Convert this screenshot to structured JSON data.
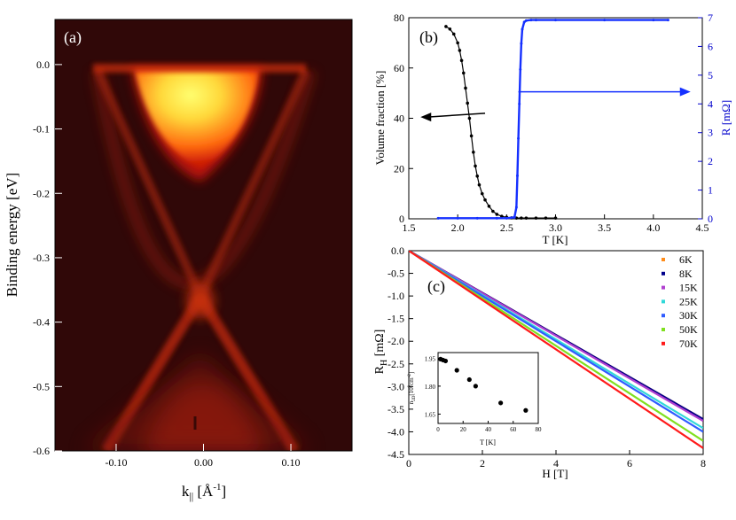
{
  "colors": {
    "arpes_bg": "#300808",
    "arpes_hot": "#ffff60",
    "black_series": "#000000",
    "blue_series": "#1530ff",
    "blue_axis": "#0000cc"
  },
  "chart_data": [
    {
      "id": "a",
      "type": "heatmap",
      "panel_label": "(a)",
      "xlabel_main": "k",
      "xlabel_sub": "||",
      "xlabel_unit": " [Å",
      "xlabel_sup": "-1",
      "xlabel_end": "]",
      "ylabel": "Binding energy [eV]",
      "xlim": [
        -0.17,
        0.17
      ],
      "ylim": [
        -0.6,
        0.07
      ],
      "xticks": [
        -0.1,
        0.0,
        0.1
      ],
      "xtick_labels": [
        "-0.10",
        "0.00",
        "0.10"
      ],
      "yticks": [
        0.0,
        -0.1,
        -0.2,
        -0.3,
        -0.4,
        -0.5,
        -0.6
      ],
      "ytick_labels": [
        "0.0",
        "-0.1",
        "-0.2",
        "-0.3",
        "-0.4",
        "-0.5",
        "-0.6"
      ],
      "features": {
        "dirac_point": {
          "k": -0.01,
          "E": -0.385
        },
        "conduction_band_bottom": {
          "k": -0.01,
          "E": -0.16
        },
        "fermi_k_range": [
          -0.095,
          0.065
        ]
      }
    },
    {
      "id": "b",
      "type": "line",
      "panel_label": "(b)",
      "xlabel": "T [K]",
      "ylabel_left": "Volume fraction [%]",
      "ylabel_right_prefix": "R [m",
      "ylabel_right_omega": "Ω",
      "ylabel_right_suffix": "]",
      "xlim": [
        1.5,
        4.5
      ],
      "ylim_left": [
        0,
        80
      ],
      "ylim_right": [
        0,
        7
      ],
      "xtick_labels": [
        "1.5",
        "2.0",
        "2.5",
        "3.0",
        "3.5",
        "4.0",
        "4.5"
      ],
      "ytick_labels_left": [
        "0",
        "20",
        "40",
        "60",
        "80"
      ],
      "ytick_labels_right": [
        "0",
        "1",
        "2",
        "3",
        "4",
        "5",
        "6",
        "7"
      ],
      "series": [
        {
          "name": "Volume fraction",
          "axis": "left",
          "x": [
            1.88,
            1.92,
            1.96,
            2.0,
            2.02,
            2.04,
            2.06,
            2.08,
            2.1,
            2.12,
            2.14,
            2.16,
            2.18,
            2.2,
            2.22,
            2.25,
            2.28,
            2.32,
            2.36,
            2.4,
            2.45,
            2.5,
            2.55,
            2.6,
            2.65,
            2.7,
            2.8,
            2.9,
            3.0
          ],
          "y": [
            76.5,
            75.5,
            73.5,
            70,
            67,
            63,
            58,
            52,
            46,
            40,
            33,
            26.5,
            21,
            17,
            13.5,
            10,
            7.5,
            5,
            3,
            1.8,
            1,
            0.6,
            0.4,
            0.3,
            0.3,
            0.3,
            0.3,
            0.3,
            0.3
          ]
        },
        {
          "name": "R",
          "axis": "right",
          "x": [
            1.8,
            2.0,
            2.2,
            2.4,
            2.5,
            2.58,
            2.6,
            2.61,
            2.62,
            2.63,
            2.64,
            2.65,
            2.66,
            2.68,
            2.7,
            2.75,
            2.8,
            3.0,
            3.5,
            4.0,
            4.15
          ],
          "y": [
            0.02,
            0.02,
            0.02,
            0.02,
            0.02,
            0.05,
            0.4,
            1.5,
            2.8,
            4.0,
            5.2,
            6.1,
            6.6,
            6.85,
            6.9,
            6.92,
            6.92,
            6.92,
            6.92,
            6.92,
            6.92
          ]
        }
      ],
      "arrows": [
        {
          "direction": "left",
          "series": "Volume fraction",
          "from": [
            2.28,
            42
          ],
          "to": [
            1.62,
            40.5
          ]
        },
        {
          "direction": "right",
          "series": "R",
          "from": [
            2.62,
            4.42
          ],
          "to": [
            4.38,
            4.42
          ]
        }
      ]
    },
    {
      "id": "c",
      "type": "line",
      "panel_label": "(c)",
      "xlabel": "H [T]",
      "ylabel_main": "R",
      "ylabel_sub": "H",
      "ylabel_unit_prefix": " [m",
      "ylabel_unit_omega": "Ω",
      "ylabel_unit_suffix": "]",
      "xlim": [
        0,
        8
      ],
      "ylim": [
        -4.5,
        0.0
      ],
      "xtick_labels": [
        "0",
        "2",
        "4",
        "6",
        "8"
      ],
      "ytick_labels": [
        "0.0",
        "-0.5",
        "-1.0",
        "-1.5",
        "-2.0",
        "-2.5",
        "-3.0",
        "-3.5",
        "-4.0",
        "-4.5"
      ],
      "series": [
        {
          "name": "6K",
          "color": "#ff8c1a",
          "slope": -0.465
        },
        {
          "name": "8K",
          "color": "#00008b",
          "slope": -0.465
        },
        {
          "name": "15K",
          "color": "#b040d0",
          "slope": -0.47
        },
        {
          "name": "25K",
          "color": "#30d8d8",
          "slope": -0.49
        },
        {
          "name": "30K",
          "color": "#2f5cff",
          "slope": -0.5
        },
        {
          "name": "50K",
          "color": "#80e020",
          "slope": -0.525
        },
        {
          "name": "70K",
          "color": "#ff1a1a",
          "slope": -0.545
        }
      ],
      "inset": {
        "type": "scatter",
        "xlabel": "T [K]",
        "ylabel": "n2D [10^9 cm^-2]",
        "xlim": [
          0,
          80
        ],
        "ylim": [
          1.6,
          1.95
        ],
        "xtick_labels": [
          "0",
          "20",
          "40",
          "60",
          "80"
        ],
        "ytick_labels": [
          "1.65",
          "1.80",
          "1.95"
        ],
        "x": [
          2,
          4,
          6,
          15,
          25,
          30,
          50,
          70
        ],
        "y": [
          1.945,
          1.94,
          1.935,
          1.885,
          1.835,
          1.8,
          1.71,
          1.67
        ]
      }
    }
  ]
}
